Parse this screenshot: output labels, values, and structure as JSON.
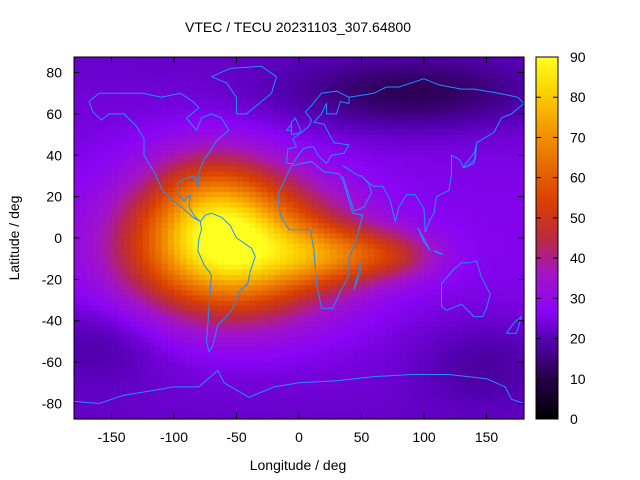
{
  "chart_data": {
    "type": "heatmap",
    "title": "VTEC / TECU 20231103_307.64800",
    "xlabel": "Longitude / deg",
    "ylabel": "Latitude / deg",
    "xlim": [
      -180,
      180
    ],
    "ylim": [
      -87.5,
      87.5
    ],
    "x_ticks": [
      -150,
      -100,
      -50,
      0,
      50,
      100,
      150
    ],
    "y_ticks": [
      -80,
      -60,
      -40,
      -20,
      0,
      20,
      40,
      60,
      80
    ],
    "colorbar": {
      "min": 0,
      "max": 90,
      "ticks": [
        0,
        10,
        20,
        30,
        40,
        50,
        60,
        70,
        80,
        90
      ]
    },
    "grid": false,
    "background_vtec": 22,
    "anomalies": [
      {
        "lon": -55,
        "lat": -5,
        "amplitude": 62,
        "sigma_lon": 55,
        "sigma_lat": 22
      },
      {
        "lon": -70,
        "lat": 20,
        "amplitude": 18,
        "sigma_lon": 35,
        "sigma_lat": 18
      },
      {
        "lon": 30,
        "lat": -8,
        "amplitude": 24,
        "sigma_lon": 35,
        "sigma_lat": 10
      },
      {
        "lon": 80,
        "lat": -8,
        "amplitude": 12,
        "sigma_lon": 25,
        "sigma_lat": 8
      },
      {
        "lon": 90,
        "lat": 70,
        "amplitude": -12,
        "sigma_lon": 70,
        "sigma_lat": 12
      },
      {
        "lon": -160,
        "lat": -50,
        "amplitude": -6,
        "sigma_lon": 40,
        "sigma_lat": 15
      },
      {
        "lon": 150,
        "lat": -60,
        "amplitude": -6,
        "sigma_lon": 40,
        "sigma_lat": 15
      }
    ],
    "peak_vtec": 88,
    "peak_location": {
      "lon": -55,
      "lat": -5
    },
    "coastline_color": "#1e90ff"
  }
}
